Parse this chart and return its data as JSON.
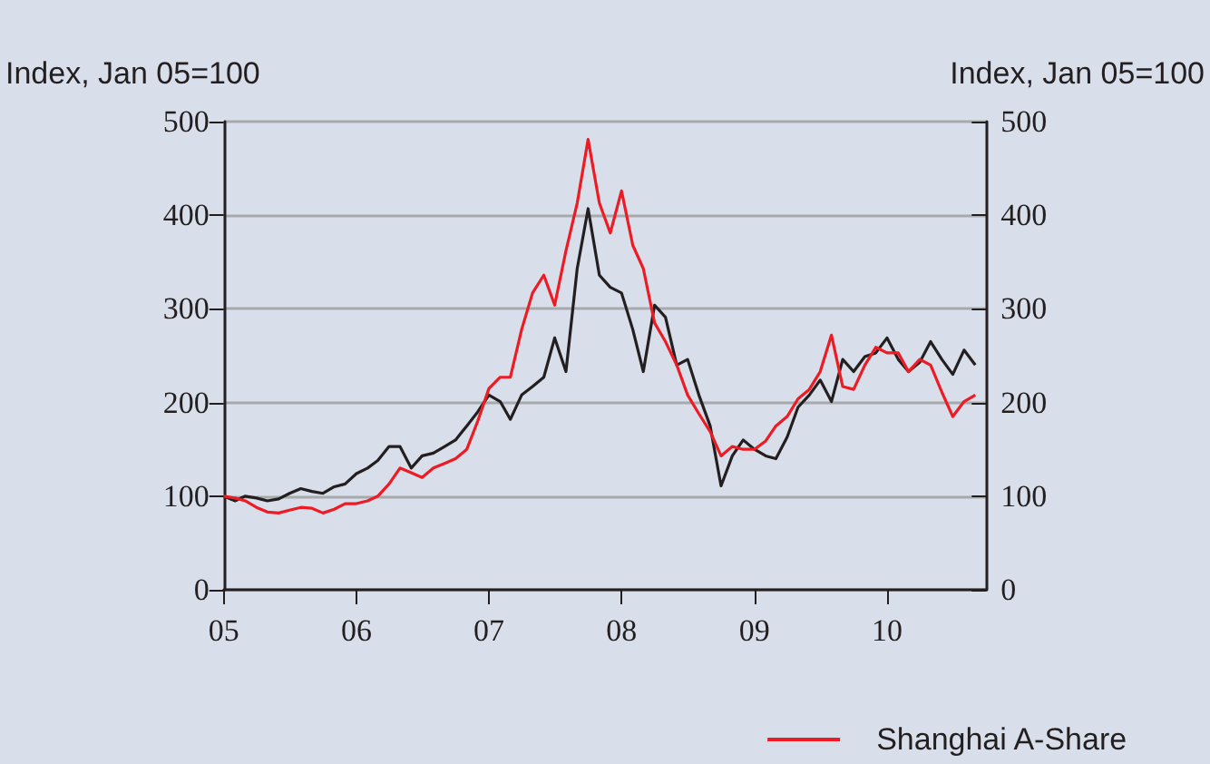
{
  "chart_data": {
    "type": "line",
    "ylabel": "Index, Jan 05=100",
    "y2label": "Index, Jan 05=100",
    "x": [
      "2005-01",
      "2005-02",
      "2005-03",
      "2005-04",
      "2005-05",
      "2005-06",
      "2005-07",
      "2005-08",
      "2005-09",
      "2005-10",
      "2005-11",
      "2005-12",
      "2006-01",
      "2006-02",
      "2006-03",
      "2006-04",
      "2006-05",
      "2006-06",
      "2006-07",
      "2006-08",
      "2006-09",
      "2006-10",
      "2006-11",
      "2006-12",
      "2007-01",
      "2007-02",
      "2007-03",
      "2007-04",
      "2007-05",
      "2007-06",
      "2007-07",
      "2007-08",
      "2007-09",
      "2007-10",
      "2007-11",
      "2007-12",
      "2008-01",
      "2008-02",
      "2008-03",
      "2008-04",
      "2008-05",
      "2008-06",
      "2008-07",
      "2008-08",
      "2008-09",
      "2008-10",
      "2008-11",
      "2008-12",
      "2009-01",
      "2009-02",
      "2009-03",
      "2009-04",
      "2009-05",
      "2009-06",
      "2009-07",
      "2009-08",
      "2009-09",
      "2009-10",
      "2009-11",
      "2009-12",
      "2010-01",
      "2010-02",
      "2010-03",
      "2010-04",
      "2010-05",
      "2010-06",
      "2010-07",
      "2010-08",
      "2010-09"
    ],
    "series": [
      {
        "color": "#231f20",
        "values": [
          100,
          95,
          100,
          98,
          95,
          97,
          103,
          108,
          105,
          103,
          110,
          113,
          124,
          130,
          138,
          153,
          153,
          130,
          143,
          146,
          153,
          160,
          175,
          190,
          208,
          201,
          182,
          208,
          217,
          227,
          269,
          233,
          343,
          407,
          336,
          323,
          317,
          278,
          233,
          304,
          291,
          240,
          246,
          208,
          175,
          111,
          143,
          160,
          150,
          143,
          140,
          163,
          195,
          208,
          224,
          201,
          246,
          233,
          249,
          253,
          269,
          246,
          233,
          243,
          265,
          246,
          230,
          256,
          240
        ]
      },
      {
        "name": "Shanghai A-Share",
        "color": "#ed1c24",
        "values": [
          100,
          98,
          95,
          88,
          83,
          82,
          85,
          88,
          87,
          82,
          86,
          92,
          92,
          95,
          100,
          113,
          130,
          125,
          120,
          130,
          135,
          140,
          150,
          180,
          215,
          227,
          227,
          278,
          317,
          336,
          304,
          362,
          413,
          481,
          413,
          381,
          426,
          368,
          343,
          285,
          265,
          240,
          208,
          188,
          169,
          143,
          153,
          150,
          150,
          159,
          175,
          185,
          204,
          214,
          233,
          272,
          217,
          214,
          240,
          259,
          253,
          253,
          233,
          246,
          240,
          211,
          185,
          201,
          208
        ]
      }
    ],
    "xlim": [
      "2005-01",
      "2010-10"
    ],
    "xticks": [
      {
        "value": "2005",
        "label": "05"
      },
      {
        "value": "2006",
        "label": "06"
      },
      {
        "value": "2007",
        "label": "07"
      },
      {
        "value": "2008",
        "label": "08"
      },
      {
        "value": "2009",
        "label": "09"
      },
      {
        "value": "2010",
        "label": "10"
      }
    ],
    "ylim": [
      0,
      500
    ],
    "yticks": [
      0,
      100,
      200,
      300,
      400,
      500
    ],
    "y2lim": [
      0,
      500
    ],
    "y2ticks": [
      0,
      100,
      200,
      300,
      400,
      500
    ],
    "grid": "y",
    "legend": "bottom",
    "marker": "none",
    "line_style": "solid"
  }
}
